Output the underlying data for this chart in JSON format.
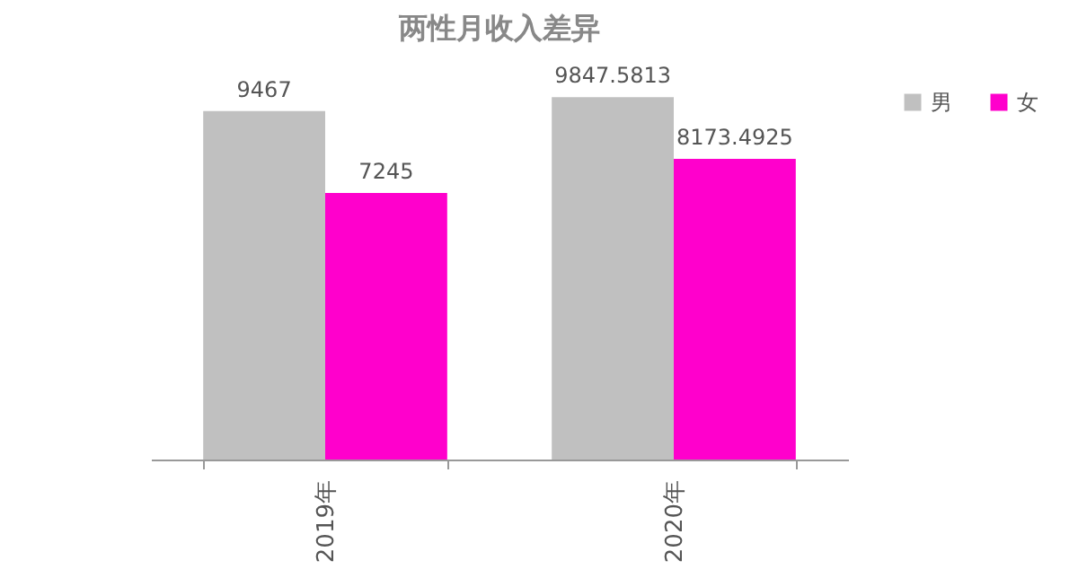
{
  "chart_data": {
    "type": "bar",
    "title": "两性月收入差异",
    "categories": [
      "2019年",
      "2020年"
    ],
    "series": [
      {
        "name": "男",
        "color": "#c0c0c0",
        "values": [
          9467,
          9847.5813
        ]
      },
      {
        "name": "女",
        "color": "#ff00cc",
        "values": [
          7245,
          8173.4925
        ]
      }
    ],
    "data_labels": true,
    "legend": "right",
    "grid": false
  }
}
